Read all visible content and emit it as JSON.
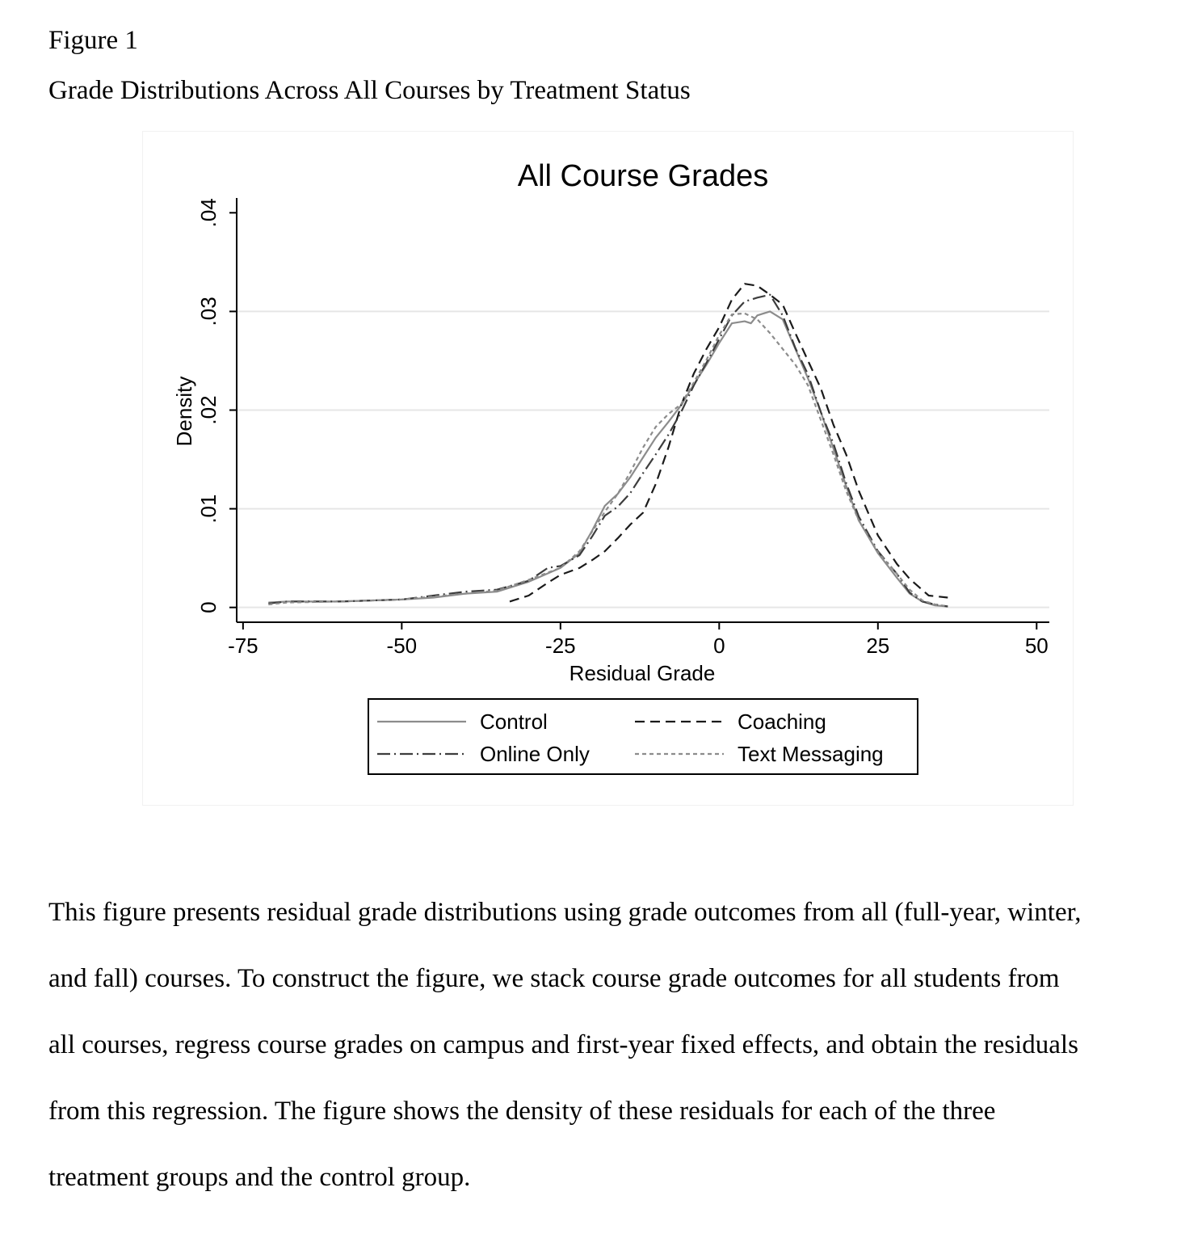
{
  "figure": {
    "label": "Figure 1",
    "title": "Grade Distributions Across All Courses by Treatment Status"
  },
  "chart_data": {
    "type": "line",
    "title": "All Course Grades",
    "xlabel": "Residual Grade",
    "ylabel": "Density",
    "xlim": [
      -76,
      52
    ],
    "ylim": [
      -0.0015,
      0.0415
    ],
    "xticks": [
      -75,
      -50,
      -25,
      0,
      25,
      50
    ],
    "xtick_labels": [
      "-75",
      "-50",
      "-25",
      "0",
      "25",
      "50"
    ],
    "yticks": [
      0,
      0.01,
      0.02,
      0.03,
      0.04
    ],
    "ytick_labels": [
      "0",
      ".01",
      ".02",
      ".03",
      ".04"
    ],
    "grid": "horizontal",
    "legend_position": "bottom",
    "series": [
      {
        "name": "Control",
        "color": "#8c8c8c",
        "dash": "solid",
        "x": [
          -71,
          -68,
          -60,
          -50,
          -45,
          -40,
          -35,
          -30,
          -25,
          -22,
          -20,
          -18,
          -16,
          -14,
          -12,
          -10,
          -8,
          -6,
          -4,
          -2,
          0,
          2,
          4,
          5,
          6,
          8,
          10,
          12,
          14,
          16,
          18,
          20,
          22,
          25,
          28,
          30,
          32,
          34,
          36
        ],
        "y": [
          0.0005,
          0.0006,
          0.0006,
          0.0008,
          0.001,
          0.0014,
          0.0016,
          0.0026,
          0.004,
          0.0055,
          0.0078,
          0.0103,
          0.0115,
          0.0132,
          0.0152,
          0.0172,
          0.0188,
          0.0205,
          0.0226,
          0.0246,
          0.0268,
          0.0288,
          0.029,
          0.0288,
          0.0296,
          0.03,
          0.0292,
          0.0262,
          0.0232,
          0.0198,
          0.0161,
          0.0123,
          0.0088,
          0.0055,
          0.003,
          0.0014,
          0.0006,
          0.0002,
          0.0001
        ]
      },
      {
        "name": "Coaching",
        "color": "#1a1a1a",
        "dash": "dashed",
        "x": [
          -33,
          -30,
          -27,
          -25,
          -22,
          -20,
          -18,
          -16,
          -14,
          -12,
          -10,
          -8,
          -6,
          -4,
          -2,
          0,
          2,
          4,
          6,
          8,
          10,
          12,
          14,
          16,
          18,
          20,
          22,
          25,
          28,
          30,
          33,
          36
        ],
        "y": [
          0.0006,
          0.0012,
          0.0025,
          0.0033,
          0.004,
          0.0048,
          0.0057,
          0.007,
          0.0084,
          0.0096,
          0.0125,
          0.0162,
          0.0205,
          0.0237,
          0.0262,
          0.0284,
          0.0312,
          0.0328,
          0.0326,
          0.0317,
          0.0307,
          0.0278,
          0.025,
          0.0222,
          0.0185,
          0.0155,
          0.0118,
          0.0073,
          0.0044,
          0.0029,
          0.0012,
          0.001
        ]
      },
      {
        "name": "Online Only",
        "color": "#3d3d3d",
        "dash": "dashdot",
        "x": [
          -71,
          -68,
          -60,
          -50,
          -45,
          -40,
          -35,
          -30,
          -27,
          -25,
          -22,
          -20,
          -18,
          -16,
          -14,
          -12,
          -10,
          -8,
          -6,
          -4,
          -2,
          0,
          2,
          4,
          6,
          8,
          10,
          12,
          14,
          16,
          18,
          20,
          22,
          25,
          28,
          30,
          32,
          34,
          36
        ],
        "y": [
          0.0004,
          0.0006,
          0.0006,
          0.0008,
          0.0012,
          0.0016,
          0.0018,
          0.0027,
          0.004,
          0.0042,
          0.0053,
          0.0072,
          0.0093,
          0.0102,
          0.0116,
          0.0136,
          0.0155,
          0.0175,
          0.0198,
          0.0225,
          0.0248,
          0.0272,
          0.0296,
          0.031,
          0.0314,
          0.0317,
          0.0296,
          0.0263,
          0.0236,
          0.0198,
          0.0166,
          0.0126,
          0.0092,
          0.0057,
          0.0034,
          0.0015,
          0.0006,
          0.0003,
          0.0001
        ]
      },
      {
        "name": "Text Messaging",
        "color": "#8c8c8c",
        "dash": "dotted",
        "x": [
          -71,
          -68,
          -60,
          -50,
          -45,
          -40,
          -35,
          -30,
          -25,
          -22,
          -20,
          -18,
          -16,
          -14,
          -12,
          -10,
          -8,
          -6,
          -4,
          -2,
          0,
          2,
          4,
          6,
          8,
          10,
          12,
          14,
          16,
          18,
          20,
          22,
          25,
          28,
          30,
          32,
          34,
          36
        ],
        "y": [
          0.0003,
          0.0005,
          0.0006,
          0.0008,
          0.0011,
          0.0014,
          0.0017,
          0.0028,
          0.004,
          0.0057,
          0.0077,
          0.0097,
          0.0115,
          0.0137,
          0.0162,
          0.0183,
          0.0196,
          0.0206,
          0.0228,
          0.0251,
          0.0276,
          0.0297,
          0.0298,
          0.0292,
          0.0278,
          0.0262,
          0.0246,
          0.0225,
          0.019,
          0.0155,
          0.0118,
          0.0088,
          0.0056,
          0.0034,
          0.0018,
          0.0007,
          0.0003,
          0.0001
        ]
      }
    ]
  },
  "caption": {
    "lines": [
      "This figure presents residual grade distributions using grade outcomes from all (full-year, winter,",
      "and fall) courses. To construct the figure, we stack course grade outcomes for all students from",
      "all courses, regress course grades on campus and first-year fixed effects, and obtain the residuals",
      "from this regression. The figure shows the density of these residuals for each of the three",
      "treatment groups and the control group."
    ]
  }
}
